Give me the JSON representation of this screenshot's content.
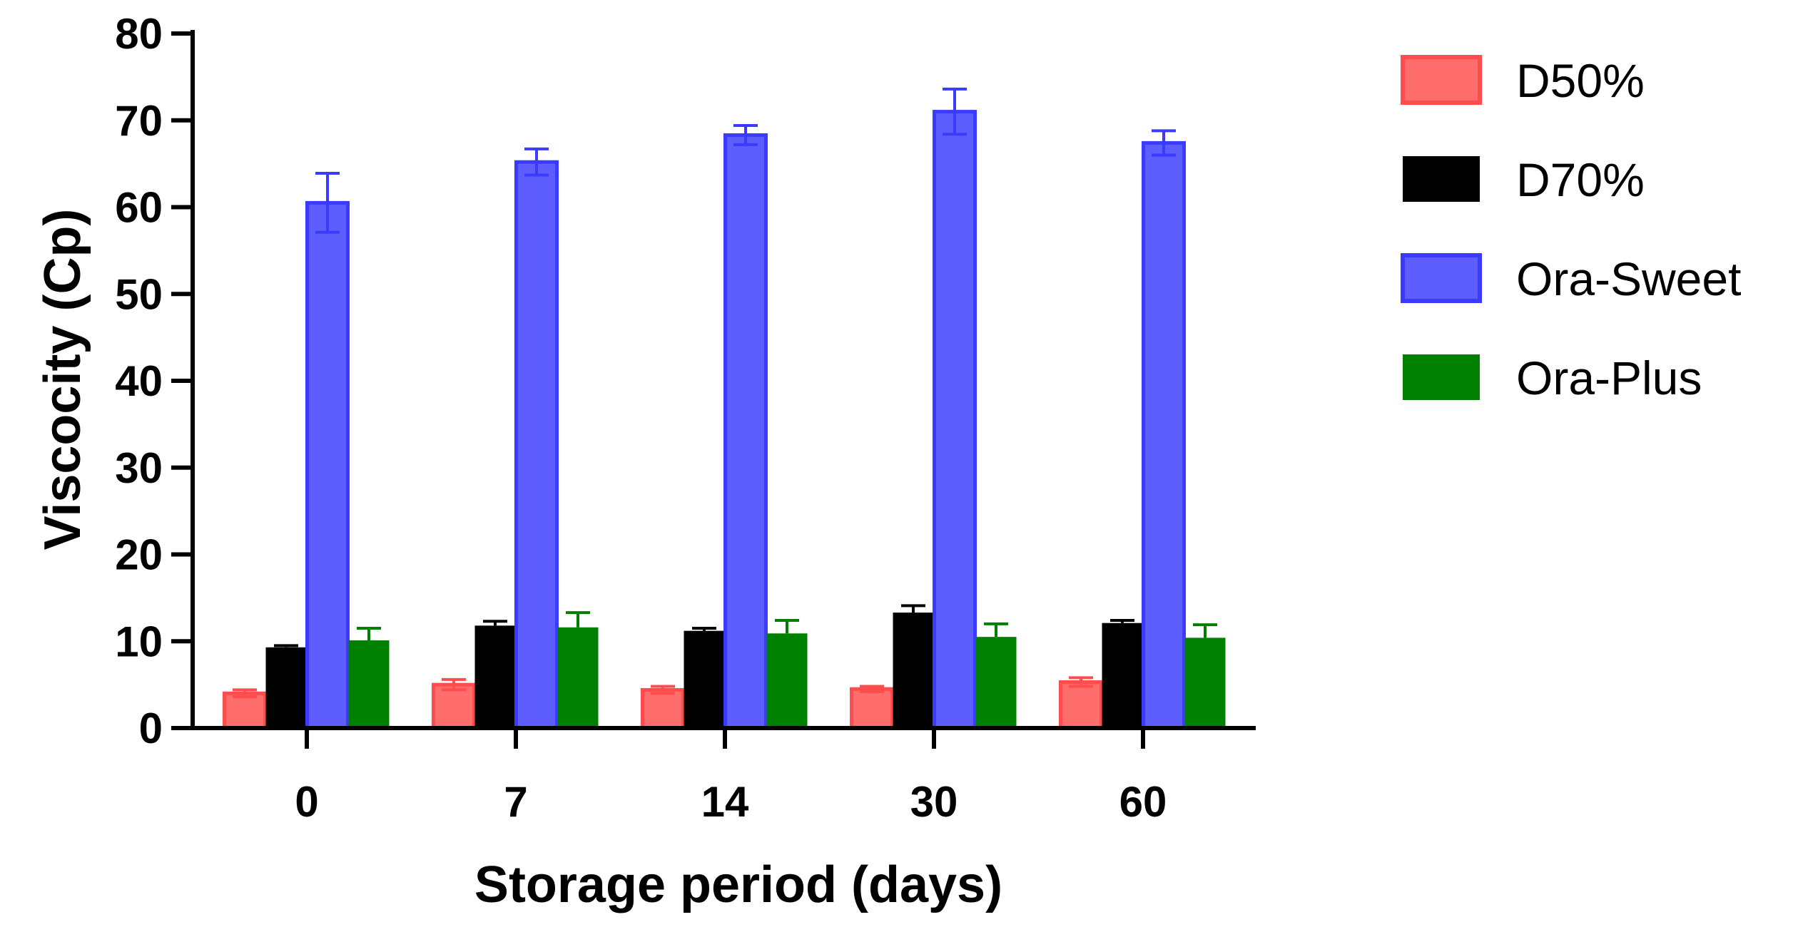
{
  "chart_data": {
    "type": "bar",
    "title": "",
    "xlabel": "Storage period (days)",
    "ylabel": "Viscocity (Cp)",
    "ylim": [
      0,
      80
    ],
    "yticks": [
      0,
      10,
      20,
      30,
      40,
      50,
      60,
      70,
      80
    ],
    "categories": [
      "0",
      "7",
      "14",
      "30",
      "60"
    ],
    "grid": false,
    "legend_position": "right",
    "error_bars": true,
    "series": [
      {
        "name": "D50%",
        "color": "#ff4d4d",
        "fill_style": "outlined",
        "values": [
          4.0,
          5.0,
          4.4,
          4.5,
          5.3
        ],
        "errors": [
          0.4,
          0.6,
          0.4,
          0.3,
          0.5
        ]
      },
      {
        "name": "D70%",
        "color": "#000000",
        "fill_style": "solid",
        "values": [
          9.3,
          11.8,
          11.2,
          13.3,
          12.1
        ],
        "errors": [
          0.2,
          0.5,
          0.3,
          0.8,
          0.3
        ]
      },
      {
        "name": "Ora-Sweet",
        "color": "#3b3bff",
        "fill_style": "outlined",
        "values": [
          60.5,
          65.2,
          68.3,
          71.0,
          67.4
        ],
        "errors": [
          3.4,
          1.5,
          1.1,
          2.6,
          1.4
        ]
      },
      {
        "name": "Ora-Plus",
        "color": "#008000",
        "fill_style": "solid",
        "values": [
          10.1,
          11.6,
          10.9,
          10.5,
          10.4
        ],
        "errors": [
          1.4,
          1.7,
          1.5,
          1.5,
          1.5
        ]
      }
    ]
  }
}
